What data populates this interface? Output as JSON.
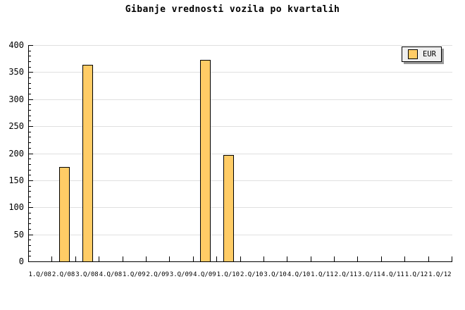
{
  "chart_data": {
    "type": "bar",
    "title": "Gibanje vrednosti vozila po kvartalih",
    "categories": [
      "1.Q/08",
      "2.Q/08",
      "3.Q/08",
      "4.Q/08",
      "1.Q/09",
      "2.Q/09",
      "3.Q/09",
      "4.Q/09",
      "1.Q/10",
      "2.Q/10",
      "3.Q/10",
      "4.Q/10",
      "1.Q/11",
      "2.Q/11",
      "3.Q/11",
      "4.Q/11",
      "1.Q/12",
      "1.Q/12"
    ],
    "series": [
      {
        "name": "EUR",
        "color": "#FFCC66",
        "values": [
          0,
          175,
          363,
          0,
          0,
          0,
          0,
          372,
          197,
          0,
          0,
          0,
          0,
          0,
          0,
          0,
          0,
          0
        ]
      }
    ],
    "xlabel": "",
    "ylabel": "",
    "ylim": [
      0,
      400
    ],
    "yticks": [
      0,
      50,
      100,
      150,
      200,
      250,
      300,
      350,
      400
    ],
    "ytick_step": 50,
    "y_minor_tick_step": 10,
    "grid": true,
    "legend_position": "top-right"
  },
  "colors": {
    "background": "#FFFFFF",
    "bar_fill": "#FFCC66",
    "bar_border": "#000000",
    "grid": "#E0E0E0",
    "axis": "#000000",
    "text": "#000000",
    "legend_bg": "#EFEFEF",
    "legend_border": "#000000",
    "legend_shadow": "#999999"
  }
}
